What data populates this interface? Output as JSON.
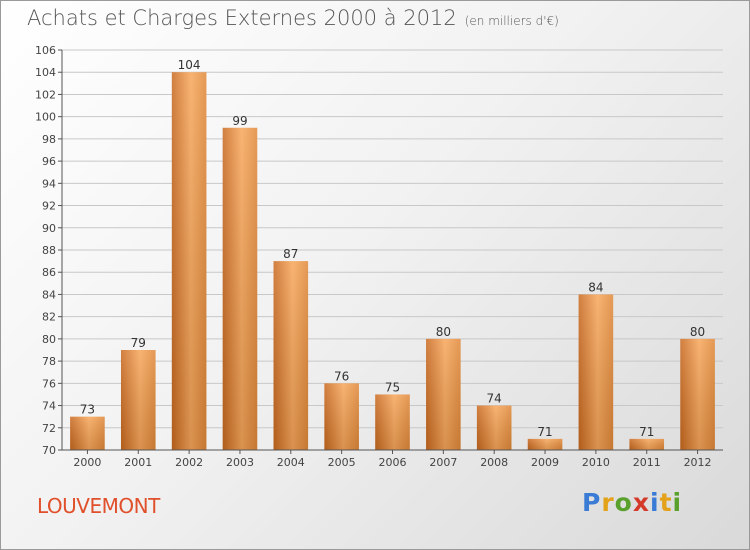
{
  "title": "Achats et Charges Externes 2000 à 2012",
  "unit": "(en milliers d'€)",
  "commune": "LOUVEMONT",
  "logo": {
    "letters": [
      "P",
      "r",
      "o",
      "x",
      "i",
      "t",
      "i"
    ],
    "colors": [
      "#3a7bd5",
      "#e3a21a",
      "#5aa02c",
      "#d43a2a",
      "#3a7bd5",
      "#e3a21a",
      "#5aa02c"
    ]
  },
  "colors": {
    "bar_light": "#f7a65a",
    "bar_dark": "#c9691f",
    "title": "#555555",
    "commune": "#e0502a"
  },
  "chart_data": {
    "type": "bar",
    "title": "Achats et Charges Externes 2000 à 2012",
    "subtitle": "(en milliers d'€)",
    "categories": [
      "2000",
      "2001",
      "2002",
      "2003",
      "2004",
      "2005",
      "2006",
      "2007",
      "2008",
      "2009",
      "2010",
      "2011",
      "2012"
    ],
    "values": [
      73,
      79,
      104,
      99,
      87,
      76,
      75,
      80,
      74,
      71,
      84,
      71,
      80
    ],
    "ylim": [
      70,
      106
    ],
    "yticks": [
      70,
      72,
      74,
      76,
      78,
      80,
      82,
      84,
      86,
      88,
      90,
      92,
      94,
      96,
      98,
      100,
      102,
      104,
      106
    ],
    "grid": true,
    "xlabel": "",
    "ylabel": ""
  }
}
